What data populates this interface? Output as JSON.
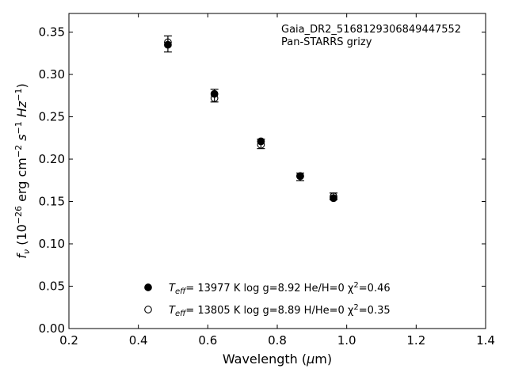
{
  "chart_data": {
    "type": "scatter",
    "xlabel": "Wavelength (μm)",
    "ylabel": "fν (10−26 erg cm−2 s−1 Hz−1)",
    "xlim": [
      0.2,
      1.4
    ],
    "ylim": [
      0.0,
      0.372
    ],
    "xticks": [
      0.2,
      0.4,
      0.6,
      0.8,
      1.0,
      1.2,
      1.4
    ],
    "yticks": [
      0.0,
      0.05,
      0.1,
      0.15,
      0.2,
      0.25,
      0.3,
      0.35
    ],
    "xtick_labels": [
      "0.2",
      "0.4",
      "0.6",
      "0.8",
      "1.0",
      "1.2",
      "1.4"
    ],
    "ytick_labels": [
      "0.00",
      "0.05",
      "0.10",
      "0.15",
      "0.20",
      "0.25",
      "0.30",
      "0.35"
    ],
    "annotations": [
      "Gaia_DR2_5168129306849447552",
      "Pan-STARRS grizy"
    ],
    "grid": false,
    "legend_position": "lower-center",
    "observed": {
      "x": [
        0.485,
        0.619,
        0.753,
        0.866,
        0.962
      ],
      "y": [
        0.336,
        0.275,
        0.218,
        0.179,
        0.156
      ],
      "yerr": [
        0.0095,
        0.0075,
        0.0055,
        0.0045,
        0.004
      ]
    },
    "series": [
      {
        "name": "Teff= 13977 K  log g=8.92  He/H=0  χ2=0.46",
        "marker": "filled-circle",
        "x": [
          0.485,
          0.619,
          0.753,
          0.866,
          0.962
        ],
        "y": [
          0.335,
          0.277,
          0.221,
          0.18,
          0.154
        ]
      },
      {
        "name": "Teff= 13805 K  log g=8.89  H/He=0  χ2=0.35",
        "marker": "open-circle",
        "x": [
          0.485,
          0.619,
          0.753,
          0.866,
          0.962
        ],
        "y": [
          0.338,
          0.272,
          0.217,
          0.18,
          0.156
        ]
      }
    ],
    "legend": [
      {
        "parts": [
          "T",
          "eff",
          "= 13977 K  log g=8.92  He/H=0  χ",
          "2",
          "=0.46"
        ]
      },
      {
        "parts": [
          "T",
          "eff",
          "= 13805 K  log g=8.89  H/He=0  χ",
          "2",
          "=0.35"
        ]
      }
    ],
    "ylabel_parts": [
      "f",
      "ν",
      " (10",
      "−26",
      " erg cm",
      "−2",
      " s",
      "−1",
      " Hz",
      "−1",
      ")"
    ]
  }
}
